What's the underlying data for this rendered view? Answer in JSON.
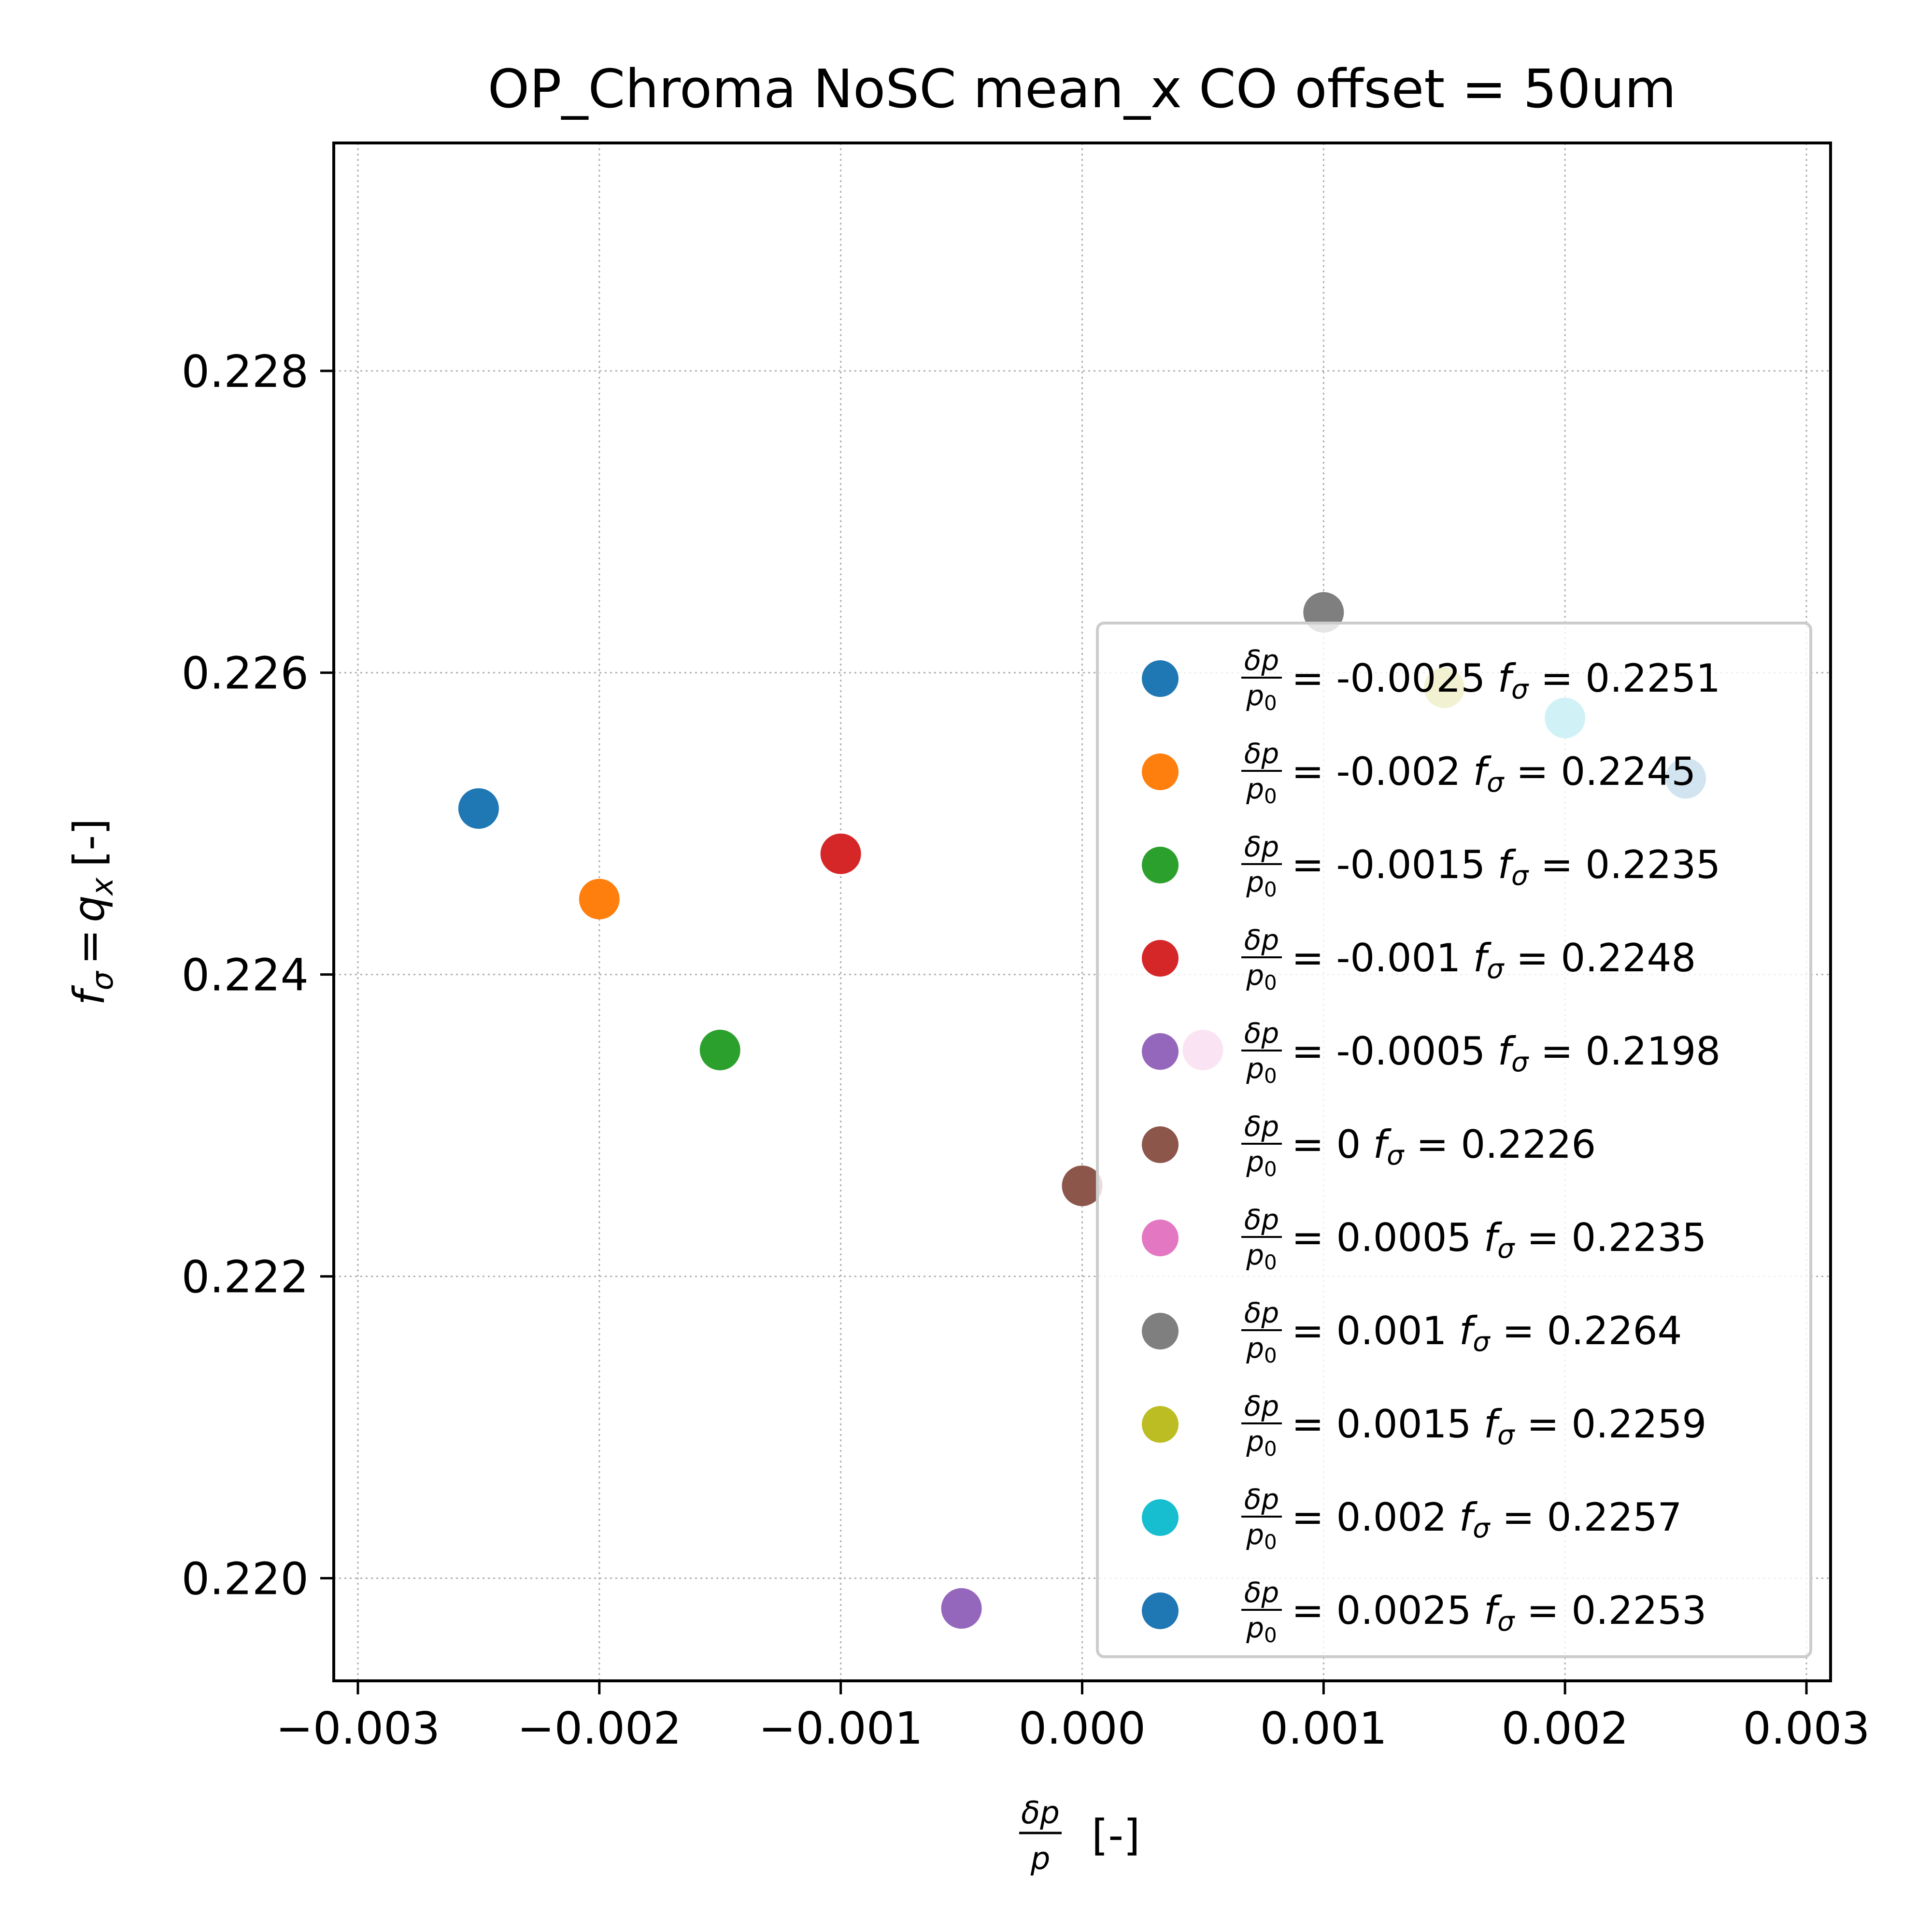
{
  "chart_data": {
    "type": "scatter",
    "title": "OP_Chroma NoSC mean_x CO offset = 50um",
    "xlabel": {
      "num": "δp",
      "den": "p",
      "suffix": "[-]"
    },
    "ylabel": {
      "f": "f",
      "sub": "σ",
      "eq": "=",
      "q": "q",
      "qsub": "x",
      "suffix": "[-]"
    },
    "xlim": [
      -0.0031,
      0.0031
    ],
    "ylim": [
      0.21932,
      0.22951
    ],
    "xticks": [
      -0.003,
      -0.002,
      -0.001,
      0.0,
      0.001,
      0.002,
      0.003
    ],
    "xtick_labels": [
      "−0.003",
      "−0.002",
      "−0.001",
      "0.000",
      "0.001",
      "0.002",
      "0.003"
    ],
    "yticks": [
      0.22,
      0.222,
      0.224,
      0.226,
      0.228
    ],
    "ytick_labels": [
      "0.220",
      "0.222",
      "0.224",
      "0.226",
      "0.228"
    ],
    "grid": true,
    "legend_position": "lower right",
    "legend_frac": {
      "num": "δp",
      "den": "p",
      "den_sub": "0",
      "eq": "=",
      "fsym": "f",
      "fsub": "σ",
      "feq": "="
    },
    "series": [
      {
        "name_dp": "-0.0025",
        "name_f": "0.2251",
        "x": -0.0025,
        "y": 0.2251,
        "color": "#1f77b4"
      },
      {
        "name_dp": "-0.002",
        "name_f": "0.2245",
        "x": -0.002,
        "y": 0.2245,
        "color": "#ff7f0e"
      },
      {
        "name_dp": "-0.0015",
        "name_f": "0.2235",
        "x": -0.0015,
        "y": 0.2235,
        "color": "#2ca02c"
      },
      {
        "name_dp": "-0.001",
        "name_f": "0.2248",
        "x": -0.001,
        "y": 0.2248,
        "color": "#d62728"
      },
      {
        "name_dp": "-0.0005",
        "name_f": "0.2198",
        "x": -0.0005,
        "y": 0.2198,
        "color": "#9467bd"
      },
      {
        "name_dp": "0",
        "name_f": "0.2226",
        "x": 0.0,
        "y": 0.2226,
        "color": "#8c564b"
      },
      {
        "name_dp": "0.0005",
        "name_f": "0.2235",
        "x": 0.0005,
        "y": 0.2235,
        "color": "#e377c2"
      },
      {
        "name_dp": "0.001",
        "name_f": "0.2264",
        "x": 0.001,
        "y": 0.2264,
        "color": "#7f7f7f"
      },
      {
        "name_dp": "0.0015",
        "name_f": "0.2259",
        "x": 0.0015,
        "y": 0.2259,
        "color": "#bcbd22"
      },
      {
        "name_dp": "0.002",
        "name_f": "0.2257",
        "x": 0.002,
        "y": 0.2257,
        "color": "#17becf"
      },
      {
        "name_dp": "0.0025",
        "name_f": "0.2253",
        "x": 0.0025,
        "y": 0.2253,
        "color": "#1f77b4"
      }
    ]
  }
}
